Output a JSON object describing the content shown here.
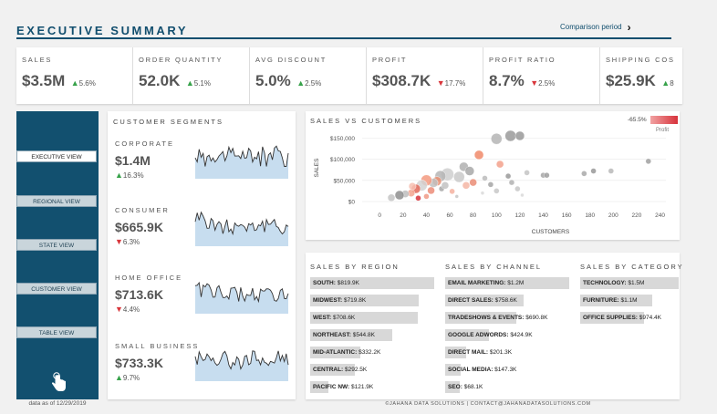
{
  "header": {
    "title": "EXECUTIVE SUMMARY",
    "comparison_label": "Comparison period",
    "comparison_chevron": "›"
  },
  "kpis": [
    {
      "label": "SALES",
      "value": "$3.5M",
      "direction": "up",
      "change": "5.6%"
    },
    {
      "label": "ORDER QUANTITY",
      "value": "52.0K",
      "direction": "up",
      "change": "5.1%"
    },
    {
      "label": "AVG DISCOUNT",
      "value": "5.0%",
      "direction": "up",
      "change": "2.5%"
    },
    {
      "label": "PROFIT",
      "value": "$308.7K",
      "direction": "down",
      "change": "17.7%"
    },
    {
      "label": "PROFIT RATIO",
      "value": "8.7%",
      "direction": "down",
      "change": "2.5%"
    },
    {
      "label": "SHIPPING COS",
      "value": "$25.9K",
      "direction": "up",
      "change": "8"
    }
  ],
  "sidebar": {
    "items": [
      {
        "label": "EXECUTIVE VIEW",
        "active": true
      },
      {
        "label": "REGIONAL VIEW",
        "active": false
      },
      {
        "label": "STATE VIEW",
        "active": false
      },
      {
        "label": "CUSTOMER VIEW",
        "active": false
      },
      {
        "label": "TABLE VIEW",
        "active": false
      }
    ],
    "data_date": "data as of 12/29/2019"
  },
  "segments": {
    "title": "CUSTOMER SEGMENTS",
    "items": [
      {
        "name": "CORPORATE",
        "value": "$1.4M",
        "direction": "up",
        "change": "16.3%"
      },
      {
        "name": "CONSUMER",
        "value": "$665.9K",
        "direction": "down",
        "change": "6.3%"
      },
      {
        "name": "HOME OFFICE",
        "value": "$713.6K",
        "direction": "down",
        "change": "4.4%"
      },
      {
        "name": "SMALL BUSINESS",
        "value": "$733.3K",
        "direction": "up",
        "change": "9.7%"
      }
    ]
  },
  "chart_data": {
    "type": "scatter",
    "title": "SALES VS CUSTOMERS",
    "xlabel": "CUSTOMERS",
    "ylabel": "SALES",
    "xlim": [
      -15,
      245
    ],
    "ylim": [
      0,
      170000
    ],
    "x_ticks": [
      "0",
      "20",
      "40",
      "60",
      "80",
      "100",
      "120",
      "140",
      "160",
      "180",
      "200",
      "220",
      "240"
    ],
    "y_ticks": [
      "$0",
      "$50,000",
      "$100,000",
      "$150,000"
    ],
    "legend": {
      "min_label": "-65.5%",
      "title": "Profit"
    },
    "points": [
      {
        "x": 112,
        "y": 155000,
        "r": 6,
        "c": "#9a9a9a"
      },
      {
        "x": 100,
        "y": 148000,
        "r": 6,
        "c": "#b5b5b5"
      },
      {
        "x": 120,
        "y": 155000,
        "r": 5,
        "c": "#999999"
      },
      {
        "x": 85,
        "y": 110000,
        "r": 5,
        "c": "#f08a6a"
      },
      {
        "x": 72,
        "y": 82000,
        "r": 5,
        "c": "#b0b0b0"
      },
      {
        "x": 77,
        "y": 72000,
        "r": 5,
        "c": "#a8a8a8"
      },
      {
        "x": 68,
        "y": 58000,
        "r": 6,
        "c": "#c9c9c9"
      },
      {
        "x": 58,
        "y": 64000,
        "r": 7,
        "c": "#cfcfcf"
      },
      {
        "x": 52,
        "y": 60000,
        "r": 6,
        "c": "#b5b5b5"
      },
      {
        "x": 49,
        "y": 48000,
        "r": 5,
        "c": "#e88f72"
      },
      {
        "x": 46,
        "y": 44000,
        "r": 5,
        "c": "#c0c0c0"
      },
      {
        "x": 40,
        "y": 50000,
        "r": 6,
        "c": "#f39a80"
      },
      {
        "x": 36,
        "y": 38000,
        "r": 6,
        "c": "#d2d2d2"
      },
      {
        "x": 31,
        "y": 30000,
        "r": 5,
        "c": "#e26a5a"
      },
      {
        "x": 27,
        "y": 20000,
        "r": 4,
        "c": "#f3a58f"
      },
      {
        "x": 22,
        "y": 18000,
        "r": 4,
        "c": "#bdbdbd"
      },
      {
        "x": 17,
        "y": 15000,
        "r": 5,
        "c": "#8e8e8e"
      },
      {
        "x": 10,
        "y": 9000,
        "r": 4,
        "c": "#c4c4c4"
      },
      {
        "x": 33,
        "y": 8000,
        "r": 3,
        "c": "#d7323b"
      },
      {
        "x": 40,
        "y": 12000,
        "r": 3,
        "c": "#f09a86"
      },
      {
        "x": 53,
        "y": 30000,
        "r": 3,
        "c": "#a8a8a8"
      },
      {
        "x": 62,
        "y": 24000,
        "r": 3,
        "c": "#f5b1a0"
      },
      {
        "x": 80,
        "y": 45000,
        "r": 4,
        "c": "#ea8d76"
      },
      {
        "x": 90,
        "y": 55000,
        "r": 3,
        "c": "#bcbcbc"
      },
      {
        "x": 95,
        "y": 40000,
        "r": 3,
        "c": "#a5a5a5"
      },
      {
        "x": 100,
        "y": 25000,
        "r": 3,
        "c": "#c8c8c8"
      },
      {
        "x": 103,
        "y": 88000,
        "r": 4,
        "c": "#f3a18c"
      },
      {
        "x": 110,
        "y": 60000,
        "r": 3,
        "c": "#999999"
      },
      {
        "x": 113,
        "y": 45000,
        "r": 3,
        "c": "#b2b2b2"
      },
      {
        "x": 126,
        "y": 68000,
        "r": 3,
        "c": "#c4c4c4"
      },
      {
        "x": 140,
        "y": 62000,
        "r": 3,
        "c": "#a6a6a6"
      },
      {
        "x": 143,
        "y": 62000,
        "r": 3,
        "c": "#9f9f9f"
      },
      {
        "x": 175,
        "y": 66000,
        "r": 3,
        "c": "#a9a9a9"
      },
      {
        "x": 183,
        "y": 72000,
        "r": 3,
        "c": "#999999"
      },
      {
        "x": 198,
        "y": 72000,
        "r": 3,
        "c": "#b9b9b9"
      },
      {
        "x": 230,
        "y": 95000,
        "r": 3,
        "c": "#a0a0a0"
      },
      {
        "x": 118,
        "y": 30000,
        "r": 3,
        "c": "#c7c7c7"
      },
      {
        "x": 122,
        "y": 15000,
        "r": 2,
        "c": "#d9d9d9"
      },
      {
        "x": 88,
        "y": 20000,
        "r": 2,
        "c": "#d9d9d9"
      },
      {
        "x": 66,
        "y": 12000,
        "r": 2,
        "c": "#c6c6c6"
      },
      {
        "x": 74,
        "y": 38000,
        "r": 4,
        "c": "#f5b6a4"
      },
      {
        "x": 44,
        "y": 26000,
        "r": 4,
        "c": "#ec8c78"
      },
      {
        "x": 56,
        "y": 38000,
        "r": 4,
        "c": "#c2c2c2"
      },
      {
        "x": 28,
        "y": 36000,
        "r": 4,
        "c": "#f7c0b2"
      }
    ]
  },
  "bar_lists": [
    {
      "title": "SALES BY REGION",
      "max": 819.9,
      "rows": [
        {
          "name": "SOUTH:",
          "value": "$819.9K",
          "v": 819.9
        },
        {
          "name": "MIDWEST:",
          "value": "$719.8K",
          "v": 719.8
        },
        {
          "name": "WEST:",
          "value": "$708.6K",
          "v": 708.6
        },
        {
          "name": "NORTHEAST:",
          "value": "$544.8K",
          "v": 544.8
        },
        {
          "name": "MID-ATLANTIC:",
          "value": "$332.2K",
          "v": 332.2
        },
        {
          "name": "CENTRAL:",
          "value": "$292.5K",
          "v": 292.5
        },
        {
          "name": "PACIFIC NW:",
          "value": "$121.9K",
          "v": 121.9
        }
      ]
    },
    {
      "title": "SALES BY CHANNEL",
      "max": 1200,
      "rows": [
        {
          "name": "EMAIL MARKETING:",
          "value": "$1.2M",
          "v": 1200
        },
        {
          "name": "DIRECT SALES:",
          "value": "$758.6K",
          "v": 758.6
        },
        {
          "name": "TRADESHOWS & EVENTS:",
          "value": "$690.8K",
          "v": 690.8
        },
        {
          "name": "GOOGLE ADWORDS:",
          "value": "$424.9K",
          "v": 424.9
        },
        {
          "name": "DIRECT MAIL:",
          "value": "$201.3K",
          "v": 201.3
        },
        {
          "name": "SOCIAL MEDIA:",
          "value": "$147.3K",
          "v": 147.3
        },
        {
          "name": "SEO:",
          "value": "$68.1K",
          "v": 68.1
        }
      ]
    },
    {
      "title": "SALES BY CATEGORY",
      "max": 1500,
      "rows": [
        {
          "name": "TECHNOLOGY:",
          "value": "$1.5M",
          "v": 1500
        },
        {
          "name": "FURNITURE:",
          "value": "$1.1M",
          "v": 1100
        },
        {
          "name": "OFFICE SUPPLIES:",
          "value": "$974.4K",
          "v": 974.4
        }
      ]
    }
  ],
  "footer": "©JAHANA DATA SOLUTIONS  |  CONTACT@JAHANADATASOLUTIONS.COM",
  "colors": {
    "accent": "#114e6e",
    "up": "#37a24a",
    "down": "#d9373c",
    "spark_fill": "#c7ddef"
  }
}
